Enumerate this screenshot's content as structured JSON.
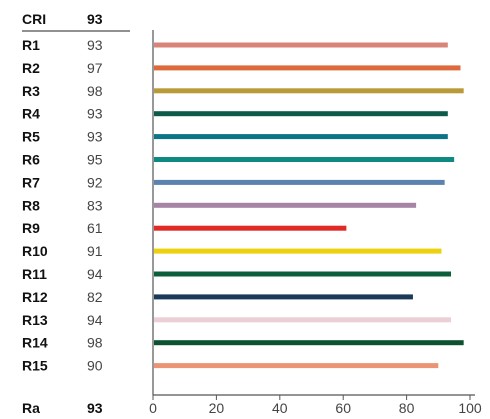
{
  "header": {
    "label": "CRI",
    "value": "93"
  },
  "footer": {
    "label": "Ra",
    "value": "93"
  },
  "chart_data": {
    "type": "bar",
    "orientation": "horizontal",
    "categories": [
      "R1",
      "R2",
      "R3",
      "R4",
      "R5",
      "R6",
      "R7",
      "R8",
      "R9",
      "R10",
      "R11",
      "R12",
      "R13",
      "R14",
      "R15"
    ],
    "values": [
      93,
      97,
      98,
      93,
      93,
      95,
      92,
      83,
      61,
      91,
      94,
      82,
      94,
      98,
      90
    ],
    "colors": [
      "#d98479",
      "#dc6a3d",
      "#b89a36",
      "#0d5a4a",
      "#0b7585",
      "#0e8a82",
      "#5c83b0",
      "#a584a6",
      "#e02a26",
      "#ecd20c",
      "#0b5e3a",
      "#1b3a5a",
      "#eccfd6",
      "#0c5130",
      "#eb9475"
    ],
    "xticks": [
      "0",
      "20",
      "40",
      "60",
      "80",
      "100"
    ],
    "xlim": [
      0,
      100
    ],
    "title": "",
    "xlabel": "",
    "ylabel": ""
  }
}
